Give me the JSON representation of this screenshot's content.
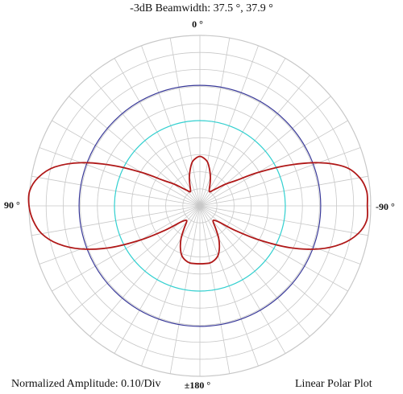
{
  "header": {
    "title": "-3dB Beamwidth: 37.5 °, 37.9 °"
  },
  "angle_labels": {
    "top": "0 °",
    "left": "90 °",
    "right": "-90 °",
    "bottom": "±180 °"
  },
  "footer": {
    "amplitude_label": "Normalized Amplitude: 0.10/Div",
    "plot_type_label": "Linear Polar Plot"
  },
  "colors": {
    "grid": "#c8c8c8",
    "pattern": "#b01818",
    "reference_outer": "#3a3a9a",
    "reference_inner": "#33d1d1"
  },
  "chart_data": {
    "type": "line",
    "coordinate_system": "polar",
    "angle_unit": "deg",
    "angle_zero": "top",
    "angle_direction": "counter-clockwise",
    "radial_range": [
      0,
      1
    ],
    "radial_division": 0.1,
    "angular_grid_step": 10,
    "grid": true,
    "reference_circles": [
      {
        "role": "outer",
        "r": 0.707
      },
      {
        "role": "inner",
        "r": 0.5
      }
    ],
    "series": [
      {
        "role": "pattern",
        "angles": [
          0,
          5,
          10,
          15,
          20,
          25,
          30,
          35,
          40,
          45,
          50,
          55,
          60,
          65,
          70,
          75,
          80,
          85,
          90,
          95,
          100,
          105,
          110,
          115,
          120,
          125,
          130,
          135,
          140,
          145,
          150,
          155,
          160,
          165,
          170,
          175,
          180,
          185,
          190,
          195,
          200,
          205,
          210,
          215,
          220,
          225,
          230,
          235,
          240,
          245,
          250,
          255,
          260,
          265,
          270,
          275,
          280,
          285,
          290,
          295,
          300,
          305,
          310,
          315,
          320,
          325,
          330,
          335,
          340,
          345,
          350,
          355
        ],
        "values": [
          0.29,
          0.28,
          0.26,
          0.22,
          0.18,
          0.14,
          0.11,
          0.1,
          0.12,
          0.15,
          0.2,
          0.26,
          0.39,
          0.56,
          0.74,
          0.88,
          0.96,
          1.0,
          1.0,
          0.98,
          0.94,
          0.86,
          0.74,
          0.58,
          0.4,
          0.25,
          0.15,
          0.12,
          0.12,
          0.16,
          0.22,
          0.27,
          0.31,
          0.33,
          0.34,
          0.34,
          0.34,
          0.34,
          0.34,
          0.33,
          0.31,
          0.27,
          0.22,
          0.16,
          0.12,
          0.12,
          0.15,
          0.25,
          0.4,
          0.58,
          0.74,
          0.86,
          0.94,
          0.98,
          0.98,
          0.98,
          0.95,
          0.88,
          0.74,
          0.56,
          0.39,
          0.26,
          0.2,
          0.15,
          0.12,
          0.1,
          0.11,
          0.14,
          0.18,
          0.22,
          0.26,
          0.28
        ]
      }
    ]
  }
}
